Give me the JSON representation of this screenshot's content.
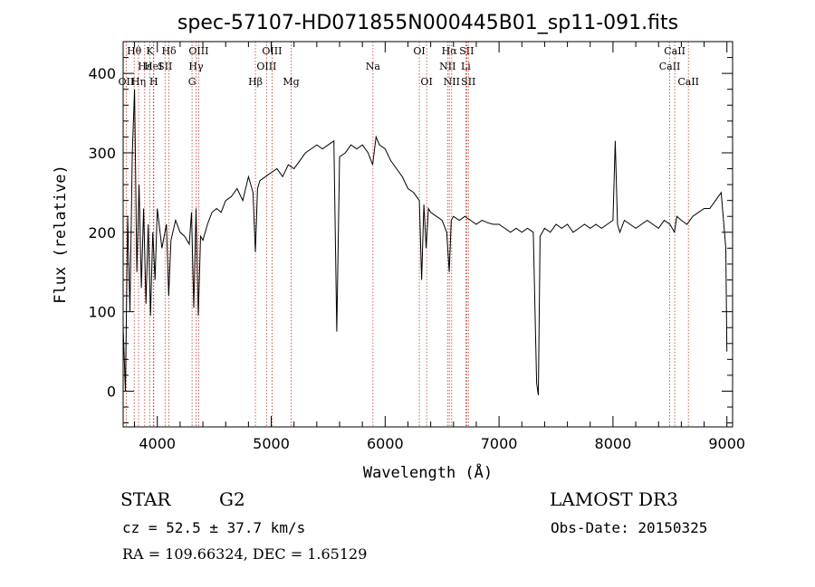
{
  "chart_data": {
    "type": "line",
    "title": "spec-57107-HD071855N000445B01_sp11-091.fits",
    "xlabel": "Wavelength (Å)",
    "ylabel": "Flux (relative)",
    "xlim": [
      3700,
      9050
    ],
    "ylim": [
      -45,
      440
    ],
    "x_ticks": [
      4000,
      5000,
      6000,
      7000,
      8000,
      9000
    ],
    "y_ticks": [
      0,
      100,
      200,
      300,
      400
    ],
    "grid": false,
    "series": [
      {
        "color": "#000000",
        "x": [
          3700,
          3720,
          3740,
          3760,
          3780,
          3800,
          3820,
          3840,
          3860,
          3880,
          3900,
          3920,
          3940,
          3960,
          3980,
          4000,
          4040,
          4080,
          4100,
          4120,
          4160,
          4200,
          4240,
          4280,
          4300,
          4320,
          4340,
          4360,
          4380,
          4400,
          4440,
          4480,
          4520,
          4560,
          4600,
          4650,
          4700,
          4750,
          4800,
          4840,
          4861,
          4880,
          4900,
          4950,
          5000,
          5050,
          5100,
          5150,
          5200,
          5250,
          5300,
          5350,
          5400,
          5450,
          5500,
          5550,
          5575,
          5600,
          5650,
          5700,
          5750,
          5800,
          5850,
          5890,
          5920,
          5950,
          6000,
          6050,
          6100,
          6150,
          6200,
          6250,
          6300,
          6320,
          6340,
          6360,
          6380,
          6400,
          6450,
          6500,
          6540,
          6563,
          6580,
          6600,
          6650,
          6700,
          6750,
          6800,
          6850,
          6900,
          6950,
          7000,
          7050,
          7100,
          7150,
          7200,
          7250,
          7300,
          7330,
          7345,
          7360,
          7400,
          7450,
          7500,
          7550,
          7600,
          7650,
          7700,
          7750,
          7800,
          7850,
          7900,
          7950,
          8000,
          8020,
          8040,
          8060,
          8100,
          8150,
          8200,
          8250,
          8300,
          8350,
          8400,
          8450,
          8500,
          8540,
          8560,
          8600,
          8650,
          8700,
          8750,
          8800,
          8850,
          8900,
          8950,
          8990,
          9000
        ],
        "y": [
          80,
          0,
          220,
          100,
          300,
          380,
          150,
          260,
          130,
          230,
          110,
          210,
          95,
          200,
          140,
          230,
          180,
          210,
          120,
          190,
          215,
          200,
          195,
          185,
          225,
          105,
          230,
          95,
          195,
          190,
          210,
          225,
          230,
          225,
          240,
          245,
          255,
          240,
          270,
          250,
          175,
          255,
          265,
          270,
          275,
          280,
          270,
          285,
          280,
          290,
          300,
          305,
          310,
          305,
          310,
          315,
          75,
          295,
          300,
          310,
          305,
          310,
          300,
          285,
          320,
          310,
          305,
          290,
          280,
          270,
          255,
          250,
          240,
          140,
          235,
          180,
          230,
          225,
          220,
          215,
          200,
          150,
          215,
          220,
          215,
          220,
          215,
          210,
          215,
          212,
          210,
          210,
          205,
          200,
          205,
          200,
          205,
          200,
          10,
          -5,
          195,
          205,
          200,
          210,
          205,
          210,
          200,
          205,
          210,
          205,
          210,
          205,
          210,
          215,
          315,
          210,
          200,
          215,
          210,
          205,
          210,
          215,
          210,
          205,
          215,
          210,
          200,
          220,
          215,
          210,
          220,
          225,
          230,
          230,
          240,
          250,
          180,
          50
        ]
      }
    ],
    "line_labels": [
      {
        "text": "Hδ",
        "wl": 4102,
        "row": 0
      },
      {
        "text": "K",
        "wl": 3934,
        "row": 0
      },
      {
        "text": "Hθ",
        "wl": 3797,
        "row": 0
      },
      {
        "text": "Hε",
        "wl": 3889,
        "row": 1
      },
      {
        "text": "HeI",
        "wl": 3965,
        "row": 1
      },
      {
        "text": "SII",
        "wl": 4068,
        "row": 1
      },
      {
        "text": "OII",
        "wl": 3727,
        "row": 2
      },
      {
        "text": "Hη",
        "wl": 3835,
        "row": 2
      },
      {
        "text": "H",
        "wl": 3969,
        "row": 2
      },
      {
        "text": "OIII",
        "wl": 4363,
        "row": 0
      },
      {
        "text": "Hγ",
        "wl": 4340,
        "row": 1
      },
      {
        "text": "G",
        "wl": 4305,
        "row": 2
      },
      {
        "text": "OIII",
        "wl": 5007,
        "row": 0
      },
      {
        "text": "OIII",
        "wl": 4959,
        "row": 1
      },
      {
        "text": "Hβ",
        "wl": 4861,
        "row": 2
      },
      {
        "text": "Mg",
        "wl": 5175,
        "row": 2
      },
      {
        "text": "Na",
        "wl": 5893,
        "row": 1
      },
      {
        "text": "OI",
        "wl": 6300,
        "row": 0
      },
      {
        "text": "OI",
        "wl": 6364,
        "row": 2
      },
      {
        "text": "Hα",
        "wl": 6563,
        "row": 0
      },
      {
        "text": "SII",
        "wl": 6716,
        "row": 0
      },
      {
        "text": "NII",
        "wl": 6548,
        "row": 1
      },
      {
        "text": "Li",
        "wl": 6708,
        "row": 1
      },
      {
        "text": "NII",
        "wl": 6584,
        "row": 2
      },
      {
        "text": "SII",
        "wl": 6731,
        "row": 2
      },
      {
        "text": "CaII",
        "wl": 8542,
        "row": 0
      },
      {
        "text": "CaII",
        "wl": 8498,
        "row": 1
      },
      {
        "text": "CaII",
        "wl": 8662,
        "row": 2
      }
    ]
  },
  "footer": {
    "object": "STAR",
    "subclass": "G2",
    "survey": "LAMOST DR3",
    "cz": "cz = 52.5 ± 37.7 km/s",
    "obs_date": "Obs-Date: 20150325",
    "coords": "RA = 109.66324, DEC =   1.65129"
  }
}
